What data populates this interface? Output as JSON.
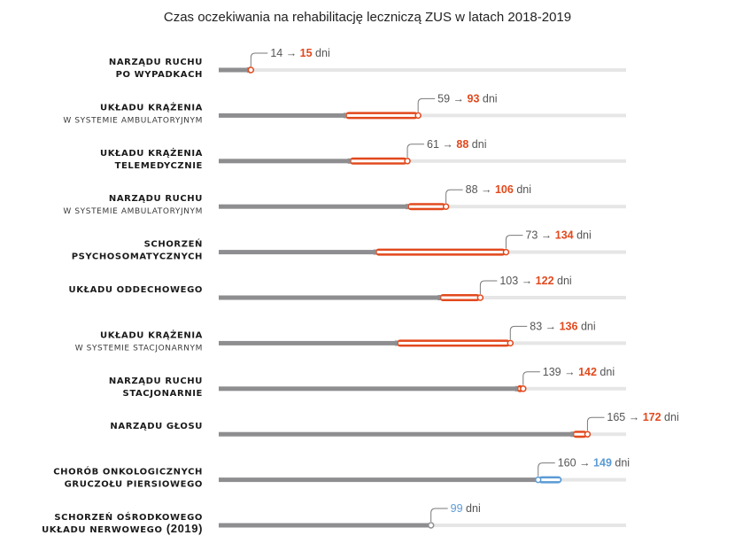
{
  "chart_data": {
    "type": "bar",
    "title": "Czas oczekiwania na rehabilitację leczniczą ZUS w latach 2018-2019",
    "unit": "dni",
    "arrow": "→",
    "xlim": [
      0,
      190
    ],
    "colors": {
      "old": "#8e8e91",
      "increase": "#e2491d",
      "decrease": "#5b9bd5",
      "track": "#e6e6e6",
      "text": "#555555"
    },
    "categories": [
      {
        "line1": "NARZĄDU RUCHU",
        "line2": "PO WYPADKACH",
        "line2_bold": true,
        "v2018": 14,
        "v2019": 15
      },
      {
        "line1": "UKŁADU KRĄŻENIA",
        "line2": "W SYSTEMIE AMBULATORYJNYM",
        "line2_bold": false,
        "v2018": 59,
        "v2019": 93
      },
      {
        "line1": "UKŁADU KRĄŻENIA",
        "line2": "TELEMEDYCZNIE",
        "line2_bold": true,
        "v2018": 61,
        "v2019": 88
      },
      {
        "line1": "NARZĄDU RUCHU",
        "line2": "W SYSTEMIE AMBULATORYJNYM",
        "line2_bold": false,
        "v2018": 88,
        "v2019": 106
      },
      {
        "line1": "SCHORZEŃ",
        "line2": "PSYCHOSOMATYCZNYCH",
        "line2_bold": true,
        "v2018": 73,
        "v2019": 134
      },
      {
        "line1": "UKŁADU ODDECHOWEGO",
        "line2": "",
        "line2_bold": false,
        "v2018": 103,
        "v2019": 122
      },
      {
        "line1": "UKŁADU KRĄŻENIA",
        "line2": "W SYSTEMIE STACJONARNYM",
        "line2_bold": false,
        "v2018": 83,
        "v2019": 136
      },
      {
        "line1": "NARZĄDU RUCHU",
        "line2": "STACJONARNIE",
        "line2_bold": true,
        "v2018": 139,
        "v2019": 142
      },
      {
        "line1": "NARZĄDU GŁOSU",
        "line2": "",
        "line2_bold": false,
        "v2018": 165,
        "v2019": 172
      },
      {
        "line1": "CHORÓB ONKOLOGICZNYCH",
        "line2": "GRUCZOŁU PIERSIOWEGO",
        "line2_bold": true,
        "v2018": 160,
        "v2019": 149
      },
      {
        "line1": "SCHORZEŃ OŚRODKOWEGO",
        "line2": "UKŁADU NERWOWEGO",
        "line2_bold": true,
        "line2_suffix": "(2019)",
        "v2018": null,
        "v2019": 99
      }
    ]
  }
}
